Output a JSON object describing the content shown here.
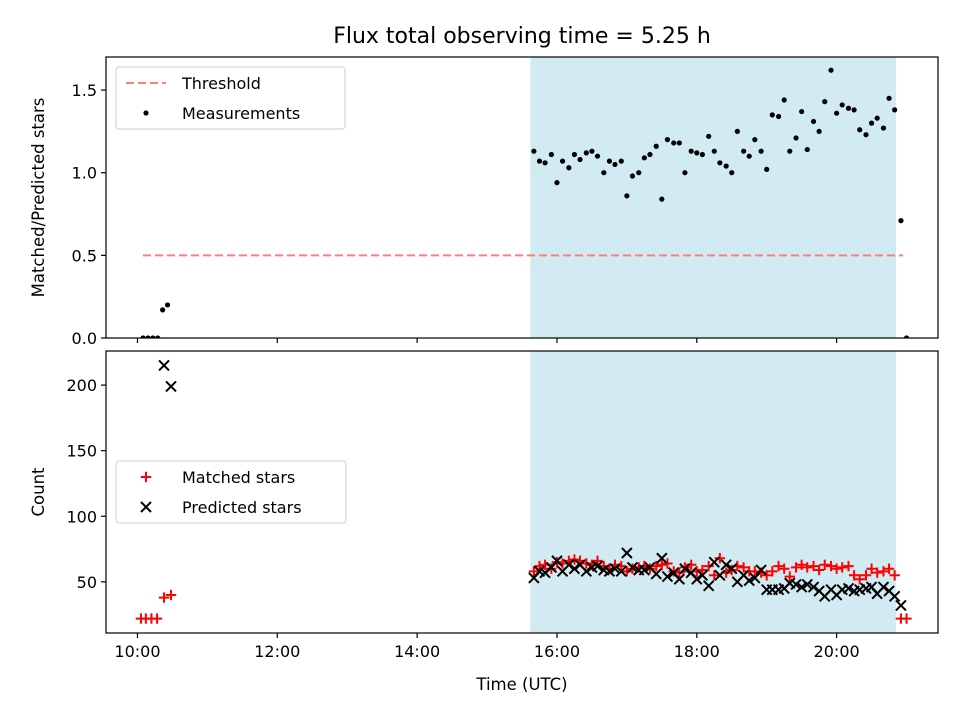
{
  "figure": {
    "title": "Flux total observing time = 5.25 h",
    "xlabel": "Time (UTC)"
  },
  "chart_data": [
    {
      "type": "scatter",
      "panel": "top",
      "title": "Flux total observing time = 5.25 h",
      "xlabel": "",
      "ylabel": "Matched/Predicted stars",
      "x_unit": "hour of day (UTC)",
      "xlim": [
        9.55,
        21.45
      ],
      "ylim": [
        0.0,
        1.7
      ],
      "x_ticks": [
        10,
        12,
        14,
        16,
        18,
        20
      ],
      "x_tick_labels": [
        "10:00",
        "12:00",
        "14:00",
        "16:00",
        "18:00",
        "20:00"
      ],
      "y_ticks": [
        0.0,
        0.5,
        1.0,
        1.5
      ],
      "y_tick_labels": [
        "0.0",
        "0.5",
        "1.0",
        "1.5"
      ],
      "grid": false,
      "legend": {
        "placement": "upper-left",
        "entries": [
          "Threshold",
          "Measurements"
        ]
      },
      "shaded_span": {
        "x_start": 15.62,
        "x_end": 20.85,
        "color": "#add8e6"
      },
      "threshold": {
        "name": "Threshold",
        "y": 0.5,
        "x_start": 10.08,
        "x_end": 20.95,
        "color": "#ff7f7f",
        "style": "dashed"
      },
      "series": [
        {
          "name": "Measurements",
          "color": "#000000",
          "marker": "dot",
          "points": [
            [
              10.08,
              0.0
            ],
            [
              10.15,
              0.0
            ],
            [
              10.22,
              0.0
            ],
            [
              10.29,
              0.0
            ],
            [
              10.36,
              0.17
            ],
            [
              10.43,
              0.2
            ],
            [
              15.67,
              1.13
            ],
            [
              15.75,
              1.07
            ],
            [
              15.83,
              1.06
            ],
            [
              15.92,
              1.11
            ],
            [
              16.0,
              0.94
            ],
            [
              16.08,
              1.07
            ],
            [
              16.17,
              1.03
            ],
            [
              16.25,
              1.11
            ],
            [
              16.33,
              1.08
            ],
            [
              16.42,
              1.12
            ],
            [
              16.5,
              1.13
            ],
            [
              16.58,
              1.1
            ],
            [
              16.67,
              1.0
            ],
            [
              16.75,
              1.07
            ],
            [
              16.83,
              1.05
            ],
            [
              16.92,
              1.07
            ],
            [
              17.0,
              0.86
            ],
            [
              17.08,
              0.98
            ],
            [
              17.17,
              1.0
            ],
            [
              17.25,
              1.09
            ],
            [
              17.33,
              1.11
            ],
            [
              17.42,
              1.16
            ],
            [
              17.5,
              0.84
            ],
            [
              17.58,
              1.2
            ],
            [
              17.67,
              1.18
            ],
            [
              17.75,
              1.18
            ],
            [
              17.83,
              1.0
            ],
            [
              17.92,
              1.13
            ],
            [
              18.0,
              1.12
            ],
            [
              18.08,
              1.11
            ],
            [
              18.17,
              1.22
            ],
            [
              18.25,
              1.13
            ],
            [
              18.33,
              1.06
            ],
            [
              18.42,
              1.04
            ],
            [
              18.5,
              1.0
            ],
            [
              18.58,
              1.25
            ],
            [
              18.67,
              1.13
            ],
            [
              18.75,
              1.1
            ],
            [
              18.83,
              1.2
            ],
            [
              18.92,
              1.13
            ],
            [
              19.0,
              1.02
            ],
            [
              19.08,
              1.35
            ],
            [
              19.17,
              1.34
            ],
            [
              19.25,
              1.44
            ],
            [
              19.33,
              1.13
            ],
            [
              19.42,
              1.21
            ],
            [
              19.5,
              1.37
            ],
            [
              19.58,
              1.14
            ],
            [
              19.67,
              1.31
            ],
            [
              19.75,
              1.25
            ],
            [
              19.83,
              1.43
            ],
            [
              19.92,
              1.62
            ],
            [
              20.0,
              1.36
            ],
            [
              20.08,
              1.41
            ],
            [
              20.17,
              1.39
            ],
            [
              20.25,
              1.38
            ],
            [
              20.33,
              1.26
            ],
            [
              20.42,
              1.23
            ],
            [
              20.5,
              1.3
            ],
            [
              20.58,
              1.33
            ],
            [
              20.67,
              1.27
            ],
            [
              20.75,
              1.45
            ],
            [
              20.83,
              1.38
            ],
            [
              20.92,
              0.71
            ],
            [
              21.0,
              0.0
            ]
          ]
        }
      ]
    },
    {
      "type": "scatter",
      "panel": "bottom",
      "xlabel": "Time (UTC)",
      "ylabel": "Count",
      "x_unit": "hour of day (UTC)",
      "xlim": [
        9.55,
        21.45
      ],
      "ylim": [
        11,
        226
      ],
      "x_ticks": [
        10,
        12,
        14,
        16,
        18,
        20
      ],
      "x_tick_labels": [
        "10:00",
        "12:00",
        "14:00",
        "16:00",
        "18:00",
        "20:00"
      ],
      "y_ticks": [
        50,
        100,
        150,
        200
      ],
      "y_tick_labels": [
        "50",
        "100",
        "150",
        "200"
      ],
      "grid": false,
      "legend": {
        "placement": "center-left",
        "entries": [
          "Matched stars",
          "Predicted stars"
        ]
      },
      "shaded_span": {
        "x_start": 15.62,
        "x_end": 20.85,
        "color": "#add8e6"
      },
      "series": [
        {
          "name": "Matched stars",
          "color": "#ff0000",
          "marker": "plus",
          "points": [
            [
              10.05,
              22
            ],
            [
              10.12,
              22
            ],
            [
              10.2,
              22
            ],
            [
              10.28,
              22
            ],
            [
              10.38,
              38
            ],
            [
              10.48,
              40
            ],
            [
              15.67,
              58
            ],
            [
              15.75,
              62
            ],
            [
              15.83,
              63
            ],
            [
              15.92,
              60
            ],
            [
              16.0,
              65
            ],
            [
              16.08,
              64
            ],
            [
              16.17,
              66
            ],
            [
              16.25,
              67
            ],
            [
              16.33,
              66
            ],
            [
              16.42,
              64
            ],
            [
              16.5,
              63
            ],
            [
              16.58,
              66
            ],
            [
              16.67,
              62
            ],
            [
              16.75,
              60
            ],
            [
              16.83,
              63
            ],
            [
              16.92,
              62
            ],
            [
              17.0,
              58
            ],
            [
              17.08,
              60
            ],
            [
              17.17,
              61
            ],
            [
              17.25,
              62
            ],
            [
              17.33,
              60
            ],
            [
              17.42,
              62
            ],
            [
              17.5,
              63
            ],
            [
              17.58,
              64
            ],
            [
              17.67,
              58
            ],
            [
              17.75,
              57
            ],
            [
              17.83,
              61
            ],
            [
              17.92,
              63
            ],
            [
              18.0,
              58
            ],
            [
              18.08,
              59
            ],
            [
              18.17,
              62
            ],
            [
              18.25,
              55
            ],
            [
              18.33,
              68
            ],
            [
              18.42,
              57
            ],
            [
              18.5,
              59
            ],
            [
              18.58,
              62
            ],
            [
              18.67,
              61
            ],
            [
              18.75,
              58
            ],
            [
              18.83,
              58
            ],
            [
              18.92,
              57
            ],
            [
              19.0,
              55
            ],
            [
              19.08,
              58
            ],
            [
              19.17,
              62
            ],
            [
              19.25,
              60
            ],
            [
              19.33,
              54
            ],
            [
              19.42,
              61
            ],
            [
              19.5,
              63
            ],
            [
              19.58,
              61
            ],
            [
              19.67,
              62
            ],
            [
              19.75,
              59
            ],
            [
              19.83,
              63
            ],
            [
              19.92,
              62
            ],
            [
              20.0,
              60
            ],
            [
              20.08,
              61
            ],
            [
              20.17,
              62
            ],
            [
              20.25,
              55
            ],
            [
              20.33,
              52
            ],
            [
              20.42,
              55
            ],
            [
              20.5,
              60
            ],
            [
              20.58,
              57
            ],
            [
              20.67,
              58
            ],
            [
              20.75,
              60
            ],
            [
              20.83,
              55
            ],
            [
              20.92,
              22
            ],
            [
              21.0,
              22
            ]
          ]
        },
        {
          "name": "Predicted stars",
          "color": "#000000",
          "marker": "x",
          "points": [
            [
              10.38,
              215
            ],
            [
              10.48,
              199
            ],
            [
              15.67,
              53
            ],
            [
              15.75,
              58
            ],
            [
              15.83,
              57
            ],
            [
              15.92,
              61
            ],
            [
              16.0,
              66
            ],
            [
              16.08,
              58
            ],
            [
              16.17,
              63
            ],
            [
              16.25,
              60
            ],
            [
              16.33,
              63
            ],
            [
              16.42,
              58
            ],
            [
              16.5,
              61
            ],
            [
              16.58,
              62
            ],
            [
              16.67,
              59
            ],
            [
              16.75,
              58
            ],
            [
              16.83,
              60
            ],
            [
              16.92,
              58
            ],
            [
              17.0,
              72
            ],
            [
              17.08,
              61
            ],
            [
              17.17,
              59
            ],
            [
              17.25,
              59
            ],
            [
              17.33,
              61
            ],
            [
              17.42,
              56
            ],
            [
              17.5,
              68
            ],
            [
              17.58,
              54
            ],
            [
              17.67,
              57
            ],
            [
              17.75,
              52
            ],
            [
              17.83,
              60
            ],
            [
              17.92,
              57
            ],
            [
              18.0,
              52
            ],
            [
              18.08,
              55
            ],
            [
              18.17,
              47
            ],
            [
              18.25,
              65
            ],
            [
              18.33,
              55
            ],
            [
              18.42,
              63
            ],
            [
              18.5,
              60
            ],
            [
              18.58,
              50
            ],
            [
              18.67,
              55
            ],
            [
              18.75,
              51
            ],
            [
              18.83,
              53
            ],
            [
              18.92,
              59
            ],
            [
              19.0,
              44
            ],
            [
              19.08,
              44
            ],
            [
              19.17,
              44
            ],
            [
              19.25,
              45
            ],
            [
              19.33,
              49
            ],
            [
              19.42,
              48
            ],
            [
              19.5,
              46
            ],
            [
              19.58,
              48
            ],
            [
              19.67,
              46
            ],
            [
              19.75,
              43
            ],
            [
              19.83,
              39
            ],
            [
              19.92,
              44
            ],
            [
              20.0,
              40
            ],
            [
              20.08,
              44
            ],
            [
              20.17,
              45
            ],
            [
              20.25,
              43
            ],
            [
              20.33,
              44
            ],
            [
              20.42,
              45
            ],
            [
              20.5,
              46
            ],
            [
              20.58,
              41
            ],
            [
              20.67,
              46
            ],
            [
              20.75,
              43
            ],
            [
              20.83,
              39
            ],
            [
              20.92,
              32
            ]
          ]
        }
      ]
    }
  ]
}
